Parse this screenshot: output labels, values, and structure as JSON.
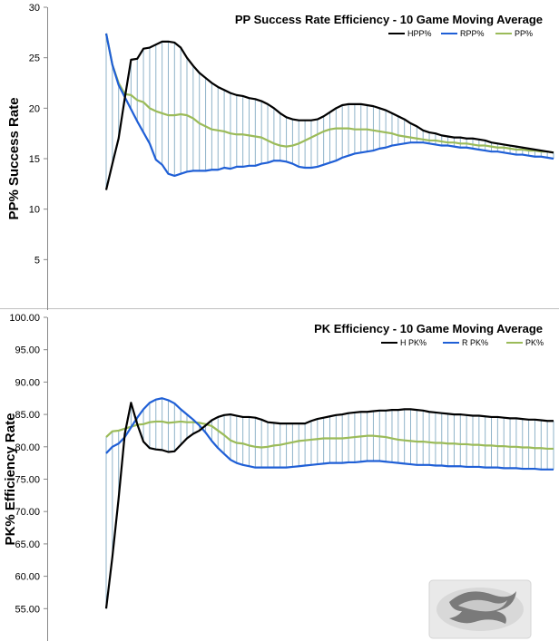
{
  "chart_data": [
    {
      "type": "line",
      "title": "PP Success Rate Efficiency - 10 Game Moving Average",
      "ylabel": "PP% Success Rate",
      "xlabel": "",
      "ylim": [
        0,
        30
      ],
      "yticks": [
        "5",
        "10",
        "15",
        "20",
        "25",
        "30"
      ],
      "ytick_values": [
        5,
        10,
        15,
        20,
        25,
        30
      ],
      "grid": false,
      "legend": "top-right",
      "drop_lines": true,
      "x": [
        1,
        2,
        3,
        4,
        5,
        6,
        7,
        8,
        9,
        10,
        11,
        12,
        13,
        14,
        15,
        16,
        17,
        18,
        19,
        20,
        21,
        22,
        23,
        24,
        25,
        26,
        27,
        28,
        29,
        30,
        31,
        32,
        33,
        34,
        35,
        36,
        37,
        38,
        39,
        40,
        41,
        42,
        43,
        44,
        45,
        46,
        47,
        48,
        49,
        50,
        51,
        52,
        53,
        54,
        55,
        56,
        57,
        58,
        59,
        60,
        61,
        62,
        63,
        64,
        65,
        66,
        67,
        68,
        69,
        70,
        71,
        72,
        73
      ],
      "series": [
        {
          "name": "HPP%",
          "color": "#000000",
          "values": [
            11.9,
            14.5,
            17.0,
            21.0,
            24.8,
            24.9,
            25.9,
            26.0,
            26.3,
            26.6,
            26.6,
            26.5,
            26.0,
            25.0,
            24.2,
            23.5,
            23.0,
            22.5,
            22.1,
            21.8,
            21.5,
            21.3,
            21.2,
            21.0,
            20.9,
            20.7,
            20.4,
            20.0,
            19.5,
            19.1,
            18.9,
            18.8,
            18.8,
            18.8,
            18.9,
            19.2,
            19.6,
            20.0,
            20.3,
            20.4,
            20.4,
            20.4,
            20.3,
            20.2,
            20.0,
            19.8,
            19.5,
            19.2,
            18.9,
            18.5,
            18.2,
            17.8,
            17.6,
            17.5,
            17.3,
            17.2,
            17.1,
            17.1,
            17.0,
            17.0,
            16.9,
            16.8,
            16.6,
            16.5,
            16.4,
            16.3,
            16.2,
            16.1,
            16.0,
            15.9,
            15.8,
            15.7,
            15.6
          ]
        },
        {
          "name": "RPP%",
          "color": "#1f5fd6",
          "values": [
            27.4,
            24.3,
            22.3,
            21.1,
            19.9,
            18.7,
            17.6,
            16.5,
            14.9,
            14.4,
            13.5,
            13.3,
            13.5,
            13.7,
            13.8,
            13.8,
            13.8,
            13.9,
            13.9,
            14.1,
            14.0,
            14.2,
            14.2,
            14.3,
            14.3,
            14.5,
            14.6,
            14.8,
            14.8,
            14.7,
            14.5,
            14.2,
            14.1,
            14.1,
            14.2,
            14.4,
            14.6,
            14.8,
            15.1,
            15.3,
            15.5,
            15.6,
            15.7,
            15.8,
            16.0,
            16.1,
            16.3,
            16.4,
            16.5,
            16.6,
            16.6,
            16.6,
            16.5,
            16.4,
            16.3,
            16.3,
            16.2,
            16.1,
            16.1,
            16.0,
            15.9,
            15.8,
            15.7,
            15.7,
            15.6,
            15.5,
            15.4,
            15.4,
            15.3,
            15.2,
            15.2,
            15.1,
            15.0
          ]
        },
        {
          "name": "PP%",
          "color": "#9bbb59",
          "values": [
            27.4,
            24.3,
            22.5,
            21.4,
            21.3,
            20.8,
            20.6,
            20.0,
            19.7,
            19.5,
            19.3,
            19.3,
            19.4,
            19.3,
            19.0,
            18.5,
            18.2,
            17.9,
            17.8,
            17.7,
            17.5,
            17.4,
            17.4,
            17.3,
            17.2,
            17.1,
            16.8,
            16.5,
            16.3,
            16.2,
            16.3,
            16.5,
            16.8,
            17.1,
            17.4,
            17.7,
            17.9,
            18.0,
            18.0,
            18.0,
            17.9,
            17.9,
            17.9,
            17.8,
            17.7,
            17.6,
            17.5,
            17.3,
            17.2,
            17.1,
            17.0,
            16.9,
            16.8,
            16.8,
            16.7,
            16.6,
            16.6,
            16.5,
            16.5,
            16.4,
            16.3,
            16.3,
            16.2,
            16.1,
            16.1,
            16.0,
            15.9,
            15.9,
            15.8,
            15.8,
            15.7,
            15.7,
            15.6
          ]
        }
      ]
    },
    {
      "type": "line",
      "title": "PK Efficiency - 10 Game Moving Average",
      "ylabel": "PK% Efficiency Rate",
      "xlabel": "",
      "ylim": [
        50,
        100
      ],
      "yticks": [
        "55.00",
        "60.00",
        "65.00",
        "70.00",
        "75.00",
        "80.00",
        "85.00",
        "90.00",
        "95.00",
        "100.00"
      ],
      "ytick_values": [
        55,
        60,
        65,
        70,
        75,
        80,
        85,
        90,
        95,
        100
      ],
      "grid": false,
      "legend": "top-right",
      "drop_lines": true,
      "x": [
        1,
        2,
        3,
        4,
        5,
        6,
        7,
        8,
        9,
        10,
        11,
        12,
        13,
        14,
        15,
        16,
        17,
        18,
        19,
        20,
        21,
        22,
        23,
        24,
        25,
        26,
        27,
        28,
        29,
        30,
        31,
        32,
        33,
        34,
        35,
        36,
        37,
        38,
        39,
        40,
        41,
        42,
        43,
        44,
        45,
        46,
        47,
        48,
        49,
        50,
        51,
        52,
        53,
        54,
        55,
        56,
        57,
        58,
        59,
        60,
        61,
        62,
        63,
        64,
        65,
        66,
        67,
        68,
        69,
        70,
        71,
        72,
        73
      ],
      "series": [
        {
          "name": "H PK%",
          "color": "#000000",
          "values": [
            55.0,
            63.0,
            72.0,
            82.0,
            86.8,
            83.5,
            80.8,
            79.8,
            79.6,
            79.5,
            79.2,
            79.3,
            80.3,
            81.3,
            82.0,
            82.5,
            83.3,
            84.1,
            84.6,
            84.9,
            85.0,
            84.8,
            84.6,
            84.6,
            84.5,
            84.2,
            83.8,
            83.7,
            83.6,
            83.6,
            83.6,
            83.6,
            83.6,
            84.0,
            84.3,
            84.5,
            84.7,
            84.9,
            85.0,
            85.2,
            85.3,
            85.4,
            85.4,
            85.5,
            85.6,
            85.6,
            85.7,
            85.7,
            85.8,
            85.8,
            85.7,
            85.6,
            85.4,
            85.3,
            85.2,
            85.1,
            85.0,
            85.0,
            84.9,
            84.8,
            84.8,
            84.7,
            84.6,
            84.6,
            84.5,
            84.4,
            84.4,
            84.3,
            84.2,
            84.2,
            84.1,
            84.0,
            84.0
          ]
        },
        {
          "name": "R PK%",
          "color": "#1f5fd6",
          "values": [
            79.0,
            80.0,
            80.5,
            81.5,
            83.0,
            84.5,
            85.8,
            86.8,
            87.3,
            87.5,
            87.2,
            86.7,
            85.8,
            85.0,
            84.2,
            83.3,
            82.2,
            80.9,
            79.8,
            78.9,
            78.0,
            77.5,
            77.2,
            77.0,
            76.8,
            76.8,
            76.8,
            76.8,
            76.8,
            76.8,
            76.9,
            77.0,
            77.1,
            77.2,
            77.3,
            77.4,
            77.5,
            77.5,
            77.5,
            77.6,
            77.6,
            77.7,
            77.8,
            77.8,
            77.8,
            77.7,
            77.6,
            77.5,
            77.4,
            77.3,
            77.2,
            77.2,
            77.2,
            77.1,
            77.1,
            77.0,
            77.0,
            77.0,
            76.9,
            76.9,
            76.9,
            76.8,
            76.8,
            76.8,
            76.7,
            76.7,
            76.7,
            76.6,
            76.6,
            76.6,
            76.5,
            76.5,
            76.5
          ]
        },
        {
          "name": "PK%",
          "color": "#9bbb59",
          "values": [
            81.5,
            82.4,
            82.5,
            82.8,
            83.1,
            83.4,
            83.5,
            83.8,
            83.9,
            83.9,
            83.7,
            83.8,
            83.9,
            83.8,
            83.8,
            83.7,
            83.5,
            83.2,
            82.5,
            81.8,
            81.0,
            80.6,
            80.5,
            80.2,
            80.0,
            79.9,
            80.0,
            80.2,
            80.3,
            80.5,
            80.7,
            80.9,
            81.0,
            81.1,
            81.2,
            81.3,
            81.3,
            81.3,
            81.3,
            81.4,
            81.5,
            81.6,
            81.7,
            81.7,
            81.6,
            81.5,
            81.3,
            81.1,
            81.0,
            80.9,
            80.8,
            80.8,
            80.7,
            80.6,
            80.6,
            80.5,
            80.5,
            80.4,
            80.4,
            80.3,
            80.3,
            80.2,
            80.2,
            80.1,
            80.1,
            80.0,
            80.0,
            79.9,
            79.9,
            79.8,
            79.8,
            79.7,
            79.7
          ]
        }
      ]
    }
  ],
  "logo": {
    "name": "ducks-logo"
  }
}
